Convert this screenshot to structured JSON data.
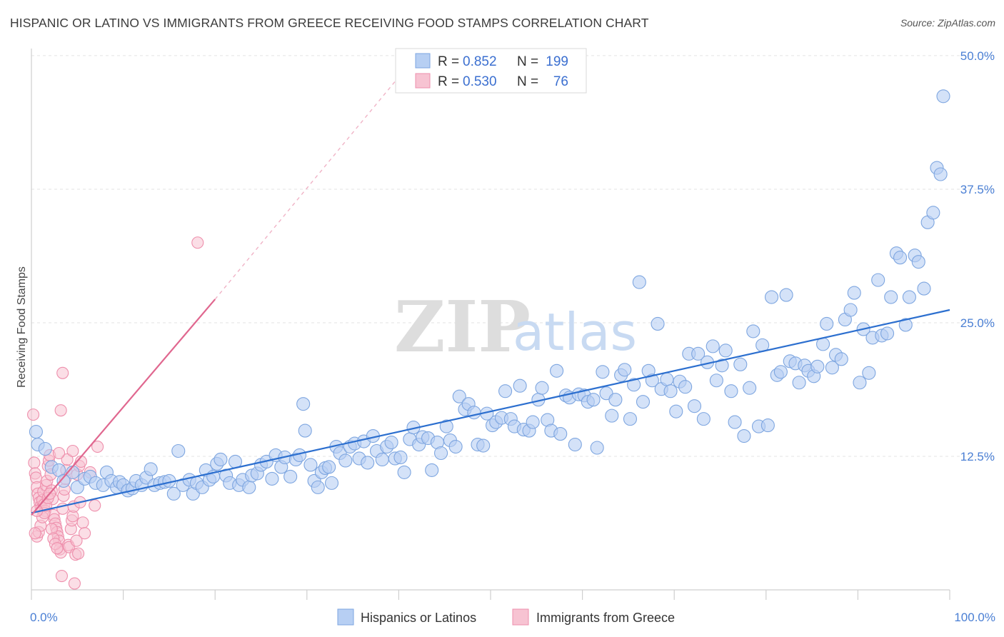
{
  "header": {
    "title": "HISPANIC OR LATINO VS IMMIGRANTS FROM GREECE RECEIVING FOOD STAMPS CORRELATION CHART",
    "source": "Source: ZipAtlas.com"
  },
  "watermark": {
    "zip": "ZIP",
    "atlas": "atlas"
  },
  "stats_legend": {
    "r_label": "R =",
    "n_label": "N =",
    "rows": [
      {
        "r": "0.852",
        "n": "199",
        "color": "#8fb4ea"
      },
      {
        "r": "0.530",
        "n": "76",
        "color": "#f3a4bd"
      }
    ]
  },
  "colors": {
    "blue_fill": "#b7cff3",
    "blue_stroke": "#7ea6e0",
    "blue_line": "#2c6fcf",
    "pink_fill": "#f7c3d2",
    "pink_stroke": "#ee8fac",
    "pink_line": "#e0678f",
    "grid": "#e3e3e3",
    "tick_text": "#4a7fd4"
  },
  "chart_data": {
    "type": "scatter",
    "title": "HISPANIC OR LATINO VS IMMIGRANTS FROM GREECE RECEIVING FOOD STAMPS CORRELATION CHART",
    "ylabel": "Receiving Food Stamps",
    "xlabel": "",
    "xlim": [
      0,
      100
    ],
    "ylim": [
      0,
      52
    ],
    "x_tick_labels": [
      "0.0%",
      "100.0%"
    ],
    "y_ticks": [
      12.5,
      25.0,
      37.5,
      50.0
    ],
    "y_tick_labels": [
      "12.5%",
      "25.0%",
      "37.5%",
      "50.0%"
    ],
    "grid": true,
    "legend_position": "bottom",
    "series": [
      {
        "name": "Hispanics or Latinos",
        "r": 0.852,
        "n": 199,
        "trend": {
          "x": [
            0,
            100
          ],
          "y": [
            7.2,
            26.2
          ],
          "extrapolated": false
        },
        "points": [
          [
            0.5,
            14.8
          ],
          [
            0.7,
            13.6
          ],
          [
            1.5,
            13.2
          ],
          [
            2.2,
            11.5
          ],
          [
            3.0,
            11.2
          ],
          [
            4.5,
            11.0
          ],
          [
            3.5,
            10.2
          ],
          [
            5.0,
            9.6
          ],
          [
            5.8,
            10.4
          ],
          [
            6.4,
            10.6
          ],
          [
            7.0,
            10.0
          ],
          [
            7.8,
            9.8
          ],
          [
            8.2,
            11.0
          ],
          [
            8.7,
            10.2
          ],
          [
            9.3,
            9.6
          ],
          [
            9.6,
            10.1
          ],
          [
            10.0,
            9.8
          ],
          [
            10.5,
            9.3
          ],
          [
            11.0,
            9.5
          ],
          [
            11.4,
            10.2
          ],
          [
            12.0,
            9.8
          ],
          [
            12.5,
            10.5
          ],
          [
            13.0,
            11.3
          ],
          [
            13.4,
            9.8
          ],
          [
            14.0,
            10.0
          ],
          [
            14.5,
            10.1
          ],
          [
            15.0,
            10.2
          ],
          [
            15.5,
            9.0
          ],
          [
            16.0,
            13.0
          ],
          [
            16.5,
            9.8
          ],
          [
            17.2,
            10.3
          ],
          [
            17.6,
            9.0
          ],
          [
            18.0,
            10.0
          ],
          [
            18.6,
            9.6
          ],
          [
            19.0,
            11.2
          ],
          [
            19.4,
            10.3
          ],
          [
            19.8,
            10.6
          ],
          [
            20.2,
            11.8
          ],
          [
            20.6,
            12.2
          ],
          [
            21.2,
            10.7
          ],
          [
            21.6,
            10.0
          ],
          [
            22.2,
            12.0
          ],
          [
            22.6,
            9.8
          ],
          [
            23.0,
            10.3
          ],
          [
            23.7,
            9.6
          ],
          [
            24.0,
            10.7
          ],
          [
            24.6,
            10.9
          ],
          [
            25.0,
            11.7
          ],
          [
            25.6,
            12.0
          ],
          [
            26.2,
            10.4
          ],
          [
            26.6,
            12.6
          ],
          [
            27.2,
            11.5
          ],
          [
            27.6,
            12.4
          ],
          [
            28.2,
            10.6
          ],
          [
            28.8,
            12.2
          ],
          [
            29.2,
            12.6
          ],
          [
            29.6,
            17.4
          ],
          [
            29.8,
            14.9
          ],
          [
            30.4,
            11.7
          ],
          [
            30.8,
            10.2
          ],
          [
            31.2,
            9.6
          ],
          [
            31.6,
            11.0
          ],
          [
            32.0,
            11.4
          ],
          [
            32.4,
            11.5
          ],
          [
            32.7,
            10.0
          ],
          [
            33.2,
            13.4
          ],
          [
            33.6,
            12.8
          ],
          [
            34.2,
            12.1
          ],
          [
            34.7,
            13.4
          ],
          [
            35.2,
            13.7
          ],
          [
            35.7,
            12.3
          ],
          [
            36.2,
            13.9
          ],
          [
            36.6,
            11.9
          ],
          [
            37.2,
            14.4
          ],
          [
            37.6,
            13.0
          ],
          [
            38.2,
            12.2
          ],
          [
            38.7,
            13.4
          ],
          [
            39.2,
            13.8
          ],
          [
            39.6,
            12.3
          ],
          [
            40.2,
            12.4
          ],
          [
            40.6,
            11.0
          ],
          [
            41.2,
            14.1
          ],
          [
            41.6,
            15.2
          ],
          [
            42.2,
            13.6
          ],
          [
            42.6,
            14.3
          ],
          [
            43.2,
            14.2
          ],
          [
            43.6,
            11.2
          ],
          [
            44.2,
            13.8
          ],
          [
            44.6,
            12.8
          ],
          [
            45.2,
            15.3
          ],
          [
            45.6,
            14.0
          ],
          [
            46.2,
            13.4
          ],
          [
            46.6,
            18.1
          ],
          [
            47.2,
            16.9
          ],
          [
            47.6,
            17.4
          ],
          [
            48.2,
            16.6
          ],
          [
            48.6,
            13.6
          ],
          [
            49.2,
            13.5
          ],
          [
            49.6,
            16.5
          ],
          [
            50.2,
            15.4
          ],
          [
            50.6,
            15.7
          ],
          [
            51.2,
            16.1
          ],
          [
            51.6,
            18.6
          ],
          [
            52.2,
            16.0
          ],
          [
            52.6,
            15.3
          ],
          [
            53.2,
            19.1
          ],
          [
            53.6,
            15.0
          ],
          [
            54.2,
            14.9
          ],
          [
            54.6,
            15.7
          ],
          [
            55.2,
            17.8
          ],
          [
            55.6,
            18.9
          ],
          [
            56.2,
            15.9
          ],
          [
            56.6,
            14.9
          ],
          [
            57.2,
            20.5
          ],
          [
            57.6,
            14.6
          ],
          [
            58.2,
            18.2
          ],
          [
            58.6,
            18.0
          ],
          [
            59.2,
            13.6
          ],
          [
            59.6,
            18.3
          ],
          [
            60.2,
            18.2
          ],
          [
            60.6,
            17.6
          ],
          [
            61.2,
            17.8
          ],
          [
            61.6,
            13.3
          ],
          [
            62.2,
            20.4
          ],
          [
            62.6,
            18.4
          ],
          [
            63.2,
            16.3
          ],
          [
            63.6,
            17.8
          ],
          [
            64.2,
            20.1
          ],
          [
            64.6,
            20.6
          ],
          [
            65.2,
            16.0
          ],
          [
            65.6,
            19.2
          ],
          [
            66.2,
            28.8
          ],
          [
            66.6,
            17.6
          ],
          [
            67.2,
            20.5
          ],
          [
            67.6,
            19.6
          ],
          [
            68.2,
            24.9
          ],
          [
            68.6,
            18.8
          ],
          [
            69.2,
            19.7
          ],
          [
            69.6,
            18.6
          ],
          [
            70.2,
            16.7
          ],
          [
            70.6,
            19.5
          ],
          [
            71.2,
            19.0
          ],
          [
            71.6,
            22.1
          ],
          [
            72.2,
            17.2
          ],
          [
            72.6,
            22.1
          ],
          [
            73.2,
            16.0
          ],
          [
            73.6,
            21.3
          ],
          [
            74.2,
            22.8
          ],
          [
            74.6,
            19.6
          ],
          [
            75.2,
            21.0
          ],
          [
            75.6,
            22.4
          ],
          [
            76.2,
            18.6
          ],
          [
            76.6,
            15.7
          ],
          [
            77.2,
            21.1
          ],
          [
            77.6,
            14.4
          ],
          [
            78.2,
            18.9
          ],
          [
            78.6,
            24.2
          ],
          [
            79.2,
            15.3
          ],
          [
            79.6,
            22.9
          ],
          [
            80.2,
            15.4
          ],
          [
            80.6,
            27.4
          ],
          [
            81.2,
            20.1
          ],
          [
            81.6,
            20.4
          ],
          [
            82.2,
            27.6
          ],
          [
            82.6,
            21.4
          ],
          [
            83.2,
            21.2
          ],
          [
            83.6,
            19.4
          ],
          [
            84.2,
            21.0
          ],
          [
            84.6,
            20.5
          ],
          [
            85.2,
            20.0
          ],
          [
            85.6,
            20.9
          ],
          [
            86.2,
            23.0
          ],
          [
            86.6,
            24.9
          ],
          [
            87.2,
            20.8
          ],
          [
            87.6,
            22.0
          ],
          [
            88.2,
            21.6
          ],
          [
            88.6,
            25.3
          ],
          [
            89.2,
            26.2
          ],
          [
            89.6,
            27.8
          ],
          [
            90.2,
            19.4
          ],
          [
            90.6,
            24.4
          ],
          [
            91.2,
            20.3
          ],
          [
            91.6,
            23.6
          ],
          [
            92.2,
            29.0
          ],
          [
            92.6,
            23.8
          ],
          [
            93.2,
            24.0
          ],
          [
            93.6,
            27.4
          ],
          [
            94.2,
            31.5
          ],
          [
            94.6,
            31.1
          ],
          [
            95.2,
            24.8
          ],
          [
            95.6,
            27.4
          ],
          [
            96.2,
            31.3
          ],
          [
            96.6,
            30.7
          ],
          [
            97.2,
            28.2
          ],
          [
            97.6,
            34.4
          ],
          [
            98.2,
            35.3
          ],
          [
            98.6,
            39.5
          ],
          [
            99.0,
            38.9
          ],
          [
            99.3,
            46.2
          ]
        ]
      },
      {
        "name": "Immigrants from Greece",
        "r": 0.53,
        "n": 76,
        "trend": {
          "x": [
            0,
            20
          ],
          "y": [
            7.0,
            27.2
          ],
          "extrapolated_to": [
            40,
            48
          ]
        },
        "points": [
          [
            0.2,
            16.4
          ],
          [
            0.3,
            11.9
          ],
          [
            0.4,
            10.9
          ],
          [
            0.5,
            10.5
          ],
          [
            0.6,
            9.6
          ],
          [
            0.7,
            9.0
          ],
          [
            0.8,
            8.6
          ],
          [
            0.9,
            8.2
          ],
          [
            1.0,
            7.8
          ],
          [
            1.1,
            7.6
          ],
          [
            1.2,
            8.4
          ],
          [
            1.3,
            9.2
          ],
          [
            1.4,
            8.0
          ],
          [
            1.5,
            7.4
          ],
          [
            1.6,
            9.8
          ],
          [
            1.7,
            10.2
          ],
          [
            1.8,
            11.6
          ],
          [
            1.9,
            12.1
          ],
          [
            2.0,
            12.6
          ],
          [
            2.1,
            10.8
          ],
          [
            2.2,
            9.3
          ],
          [
            2.3,
            8.5
          ],
          [
            2.4,
            7.0
          ],
          [
            2.5,
            6.6
          ],
          [
            2.6,
            6.2
          ],
          [
            2.7,
            5.8
          ],
          [
            2.8,
            5.4
          ],
          [
            2.9,
            5.0
          ],
          [
            3.0,
            4.6
          ],
          [
            3.1,
            3.8
          ],
          [
            3.2,
            3.5
          ],
          [
            3.3,
            1.3
          ],
          [
            3.4,
            7.6
          ],
          [
            3.5,
            8.8
          ],
          [
            3.6,
            9.4
          ],
          [
            3.7,
            10.4
          ],
          [
            3.8,
            11.2
          ],
          [
            3.9,
            12.2
          ],
          [
            4.0,
            4.2
          ],
          [
            4.1,
            4.0
          ],
          [
            4.3,
            5.7
          ],
          [
            4.4,
            6.5
          ],
          [
            4.5,
            6.9
          ],
          [
            4.6,
            7.8
          ],
          [
            4.7,
            0.6
          ],
          [
            4.8,
            3.3
          ],
          [
            5.0,
            10.8
          ],
          [
            5.2,
            11.6
          ],
          [
            5.4,
            12.0
          ],
          [
            5.6,
            6.3
          ],
          [
            5.8,
            5.3
          ],
          [
            0.6,
            5.0
          ],
          [
            0.8,
            5.4
          ],
          [
            1.0,
            6.0
          ],
          [
            1.2,
            6.8
          ],
          [
            1.4,
            7.2
          ],
          [
            1.6,
            7.9
          ],
          [
            1.8,
            8.6
          ],
          [
            2.0,
            9.0
          ],
          [
            2.2,
            5.7
          ],
          [
            2.4,
            4.8
          ],
          [
            2.6,
            4.3
          ],
          [
            2.8,
            3.9
          ],
          [
            3.0,
            12.8
          ],
          [
            3.2,
            16.8
          ],
          [
            3.4,
            20.3
          ],
          [
            0.4,
            5.3
          ],
          [
            0.6,
            7.4
          ],
          [
            4.5,
            13.0
          ],
          [
            4.9,
            4.6
          ],
          [
            5.1,
            3.4
          ],
          [
            5.3,
            8.2
          ],
          [
            6.4,
            11.0
          ],
          [
            6.9,
            7.9
          ],
          [
            7.2,
            13.4
          ],
          [
            18.1,
            32.5
          ]
        ]
      }
    ]
  },
  "bottom_legend": {
    "items": [
      {
        "label": "Hispanics or Latinos"
      },
      {
        "label": "Immigrants from Greece"
      }
    ]
  }
}
